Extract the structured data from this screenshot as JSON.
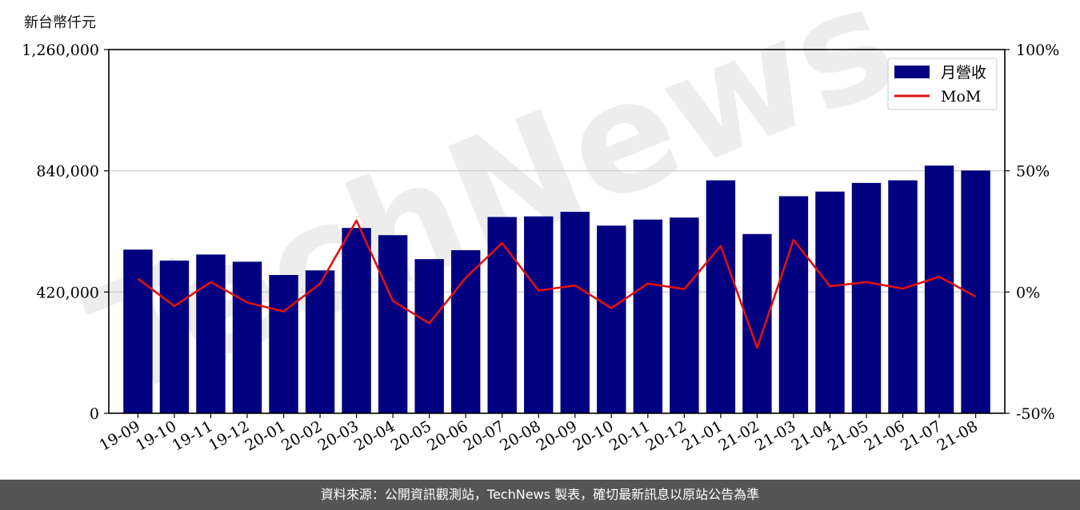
{
  "chart_data": {
    "type": "bar+line",
    "y_unit_label": "新台幣仟元",
    "categories": [
      "19-09",
      "19-10",
      "19-11",
      "19-12",
      "20-01",
      "20-02",
      "20-03",
      "20-04",
      "20-05",
      "20-06",
      "20-07",
      "20-08",
      "20-09",
      "20-10",
      "20-11",
      "20-12",
      "21-01",
      "21-02",
      "21-03",
      "21-04",
      "21-05",
      "21-06",
      "21-07",
      "21-08"
    ],
    "series": [
      {
        "name": "月營收",
        "type": "bar",
        "axis": "left",
        "color": "#000080",
        "values": [
          567000,
          529000,
          550000,
          525000,
          479000,
          495000,
          642000,
          617000,
          534000,
          565000,
          680000,
          682000,
          698000,
          650000,
          671000,
          678000,
          807000,
          621000,
          752000,
          768000,
          798000,
          807000,
          858000,
          841000
        ]
      },
      {
        "name": "MoM",
        "type": "line",
        "axis": "right",
        "color": "#e01010",
        "values": [
          5.5,
          -5.8,
          4.1,
          -4.3,
          -8.0,
          3.4,
          29.5,
          -3.7,
          -12.9,
          5.9,
          20.2,
          0.6,
          2.7,
          -6.6,
          3.5,
          1.2,
          19.0,
          -23.0,
          21.5,
          2.4,
          4.1,
          1.4,
          6.3,
          -1.9
        ]
      }
    ],
    "y_left": {
      "min": 0,
      "max": 1260000,
      "ticks": [
        "0",
        "420,000",
        "840,000",
        "1,260,000"
      ],
      "tick_values": [
        0,
        420000,
        840000,
        1260000
      ]
    },
    "y_right": {
      "min": -50,
      "max": 100,
      "ticks": [
        "-50%",
        "0%",
        "50%",
        "100%"
      ],
      "tick_values": [
        -50,
        0,
        50,
        100
      ]
    },
    "grid": "horizontal",
    "legend_position": "top-right"
  },
  "watermark": "TechNews",
  "footer": {
    "text": "資料來源：公開資訊觀測站，TechNews 製表，確切最新訊息以原站公告為準"
  }
}
